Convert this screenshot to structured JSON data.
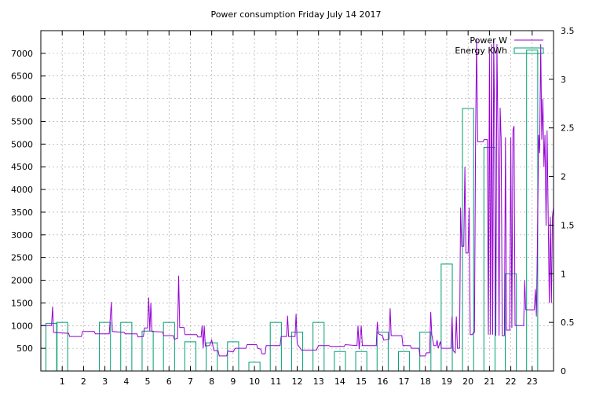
{
  "chart_data": {
    "type": "bar",
    "title": "Power consumption Friday July 14 2017",
    "xlabel": "",
    "ylabel": "",
    "y2label": "",
    "xlim": [
      0,
      24
    ],
    "ylim": [
      0,
      7500
    ],
    "y2lim": [
      0,
      3.5
    ],
    "grid": true,
    "legend": "top-right",
    "x_ticks": [
      1,
      2,
      3,
      4,
      5,
      6,
      7,
      8,
      9,
      10,
      11,
      12,
      13,
      14,
      15,
      16,
      17,
      18,
      19,
      20,
      21,
      22,
      23
    ],
    "y_ticks": [
      500,
      1000,
      1500,
      2000,
      2500,
      3000,
      3500,
      4000,
      4500,
      5000,
      5500,
      6000,
      6500,
      7000
    ],
    "y2_ticks": [
      0,
      0.5,
      1,
      1.5,
      2,
      2.5,
      3,
      3.5
    ],
    "series": [
      {
        "name": "Power W",
        "type": "line",
        "axis": "y",
        "color": "#9400d3",
        "points": [
          [
            0,
            1000
          ],
          [
            0.5,
            1000
          ],
          [
            0.55,
            1420
          ],
          [
            0.6,
            850
          ],
          [
            1.3,
            830
          ],
          [
            1.35,
            760
          ],
          [
            1.9,
            760
          ],
          [
            1.95,
            870
          ],
          [
            2.5,
            870
          ],
          [
            2.55,
            820
          ],
          [
            3.2,
            820
          ],
          [
            3.3,
            1520
          ],
          [
            3.35,
            870
          ],
          [
            3.9,
            850
          ],
          [
            3.95,
            820
          ],
          [
            4.5,
            820
          ],
          [
            4.55,
            750
          ],
          [
            4.8,
            760
          ],
          [
            4.85,
            950
          ],
          [
            5.0,
            950
          ],
          [
            5.05,
            1620
          ],
          [
            5.1,
            880
          ],
          [
            5.15,
            1500
          ],
          [
            5.2,
            870
          ],
          [
            5.7,
            860
          ],
          [
            5.75,
            780
          ],
          [
            6.2,
            780
          ],
          [
            6.25,
            700
          ],
          [
            6.4,
            720
          ],
          [
            6.45,
            2100
          ],
          [
            6.5,
            960
          ],
          [
            6.7,
            960
          ],
          [
            6.75,
            800
          ],
          [
            7.3,
            800
          ],
          [
            7.35,
            750
          ],
          [
            7.5,
            750
          ],
          [
            7.55,
            1000
          ],
          [
            7.6,
            500
          ],
          [
            7.65,
            1000
          ],
          [
            7.7,
            550
          ],
          [
            7.9,
            560
          ],
          [
            8.0,
            680
          ],
          [
            8.1,
            450
          ],
          [
            8.3,
            450
          ],
          [
            8.35,
            330
          ],
          [
            8.7,
            330
          ],
          [
            8.75,
            440
          ],
          [
            9.0,
            420
          ],
          [
            9.1,
            500
          ],
          [
            9.6,
            500
          ],
          [
            9.65,
            580
          ],
          [
            10.1,
            580
          ],
          [
            10.15,
            500
          ],
          [
            10.3,
            480
          ],
          [
            10.35,
            380
          ],
          [
            10.5,
            380
          ],
          [
            10.55,
            560
          ],
          [
            11.2,
            560
          ],
          [
            11.25,
            760
          ],
          [
            11.5,
            760
          ],
          [
            11.55,
            1220
          ],
          [
            11.6,
            760
          ],
          [
            11.9,
            760
          ],
          [
            11.95,
            1260
          ],
          [
            12.0,
            600
          ],
          [
            12.2,
            460
          ],
          [
            12.9,
            460
          ],
          [
            13.0,
            560
          ],
          [
            13.5,
            560
          ],
          [
            13.55,
            540
          ],
          [
            14.2,
            540
          ],
          [
            14.25,
            580
          ],
          [
            14.8,
            560
          ],
          [
            14.85,
            1000
          ],
          [
            14.9,
            480
          ],
          [
            15.0,
            1000
          ],
          [
            15.05,
            560
          ],
          [
            15.7,
            560
          ],
          [
            15.75,
            1080
          ],
          [
            15.8,
            820
          ],
          [
            16.0,
            780
          ],
          [
            16.05,
            680
          ],
          [
            16.3,
            700
          ],
          [
            16.35,
            1380
          ],
          [
            16.4,
            780
          ],
          [
            16.9,
            780
          ],
          [
            16.95,
            560
          ],
          [
            17.3,
            560
          ],
          [
            17.35,
            500
          ],
          [
            17.7,
            500
          ],
          [
            17.75,
            330
          ],
          [
            18.0,
            330
          ],
          [
            18.05,
            400
          ],
          [
            18.2,
            400
          ],
          [
            18.25,
            1300
          ],
          [
            18.3,
            800
          ],
          [
            18.4,
            560
          ],
          [
            18.5,
            560
          ],
          [
            18.55,
            680
          ],
          [
            18.6,
            500
          ],
          [
            18.7,
            650
          ],
          [
            18.75,
            500
          ],
          [
            19.2,
            500
          ],
          [
            19.25,
            1200
          ],
          [
            19.3,
            450
          ],
          [
            19.4,
            400
          ],
          [
            19.45,
            1200
          ],
          [
            19.5,
            500
          ],
          [
            19.6,
            500
          ],
          [
            19.65,
            3600
          ],
          [
            19.7,
            2750
          ],
          [
            19.8,
            2750
          ],
          [
            19.85,
            4500
          ],
          [
            19.9,
            2600
          ],
          [
            20.0,
            2600
          ],
          [
            20.05,
            3600
          ],
          [
            20.1,
            800
          ],
          [
            20.2,
            800
          ],
          [
            20.25,
            850
          ],
          [
            20.3,
            850
          ],
          [
            20.35,
            5150
          ],
          [
            20.4,
            7300
          ],
          [
            20.45,
            5050
          ],
          [
            20.7,
            5050
          ],
          [
            20.75,
            5100
          ],
          [
            20.9,
            5100
          ],
          [
            20.95,
            800
          ],
          [
            21.0,
            7000
          ],
          [
            21.05,
            800
          ],
          [
            21.1,
            7200
          ],
          [
            21.15,
            800
          ],
          [
            21.2,
            7300
          ],
          [
            21.25,
            5000
          ],
          [
            21.3,
            780
          ],
          [
            21.35,
            7200
          ],
          [
            21.4,
            5100
          ],
          [
            21.45,
            780
          ],
          [
            21.5,
            5800
          ],
          [
            21.55,
            5100
          ],
          [
            21.6,
            780
          ],
          [
            21.7,
            780
          ],
          [
            21.75,
            5150
          ],
          [
            21.8,
            900
          ],
          [
            21.95,
            900
          ],
          [
            22.0,
            5150
          ],
          [
            22.05,
            950
          ],
          [
            22.1,
            5300
          ],
          [
            22.15,
            5400
          ],
          [
            22.2,
            1000
          ],
          [
            22.6,
            1000
          ],
          [
            22.65,
            2000
          ],
          [
            22.7,
            1350
          ],
          [
            23.1,
            1350
          ],
          [
            23.15,
            1800
          ],
          [
            23.2,
            1200
          ],
          [
            23.25,
            3000
          ],
          [
            23.3,
            5200
          ],
          [
            23.35,
            4800
          ],
          [
            23.4,
            7200
          ],
          [
            23.45,
            5100
          ],
          [
            23.5,
            6000
          ],
          [
            23.55,
            4500
          ],
          [
            23.6,
            5200
          ],
          [
            23.65,
            3200
          ],
          [
            23.7,
            5300
          ],
          [
            23.75,
            3400
          ],
          [
            23.8,
            1500
          ],
          [
            23.85,
            3400
          ],
          [
            23.9,
            1500
          ],
          [
            23.95,
            3400
          ],
          [
            24.0,
            3600
          ]
        ]
      },
      {
        "name": "Energy KWh",
        "type": "bar",
        "axis": "y2",
        "color": "#009e73",
        "x": [
          0.5,
          1,
          2,
          3,
          4,
          5,
          6,
          7,
          8,
          9,
          10,
          11,
          12,
          13,
          14,
          15,
          16,
          17,
          18,
          19,
          20,
          21,
          22,
          23
        ],
        "values": [
          0.49,
          0.5,
          0,
          0.5,
          0.5,
          0.41,
          0.5,
          0.3,
          0.29,
          0.3,
          0.09,
          0.5,
          0.4,
          0.5,
          0.2,
          0.2,
          0.4,
          0.2,
          0.4,
          1.1,
          2.7,
          2.3,
          1.0,
          3.3
        ]
      }
    ]
  }
}
